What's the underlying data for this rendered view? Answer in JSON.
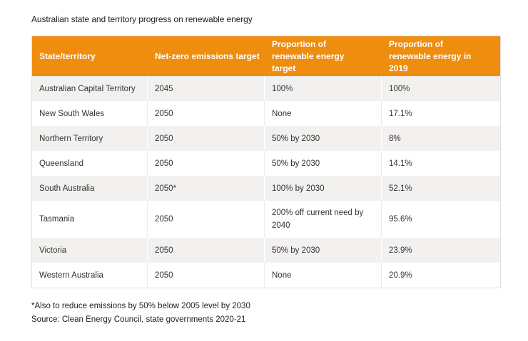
{
  "title": "Australian state and territory progress on renewable energy",
  "table": {
    "headers": [
      "State/territory",
      "Net-zero emissions target",
      "Proportion of renewable energy target",
      "Proportion of renewable energy in 2019"
    ],
    "rows": [
      [
        "Australian Capital Territory",
        "2045",
        "100%",
        "100%"
      ],
      [
        "New South Wales",
        "2050",
        "None",
        "17.1%"
      ],
      [
        "Northern Territory",
        "2050",
        "50% by 2030",
        "8%"
      ],
      [
        "Queensland",
        "2050",
        "50% by 2030",
        "14.1%"
      ],
      [
        "South Australia",
        "2050*",
        "100% by 2030",
        "52.1%"
      ],
      [
        "Tasmania",
        "2050",
        "200% off current need by 2040",
        "95.6%"
      ],
      [
        "Victoria",
        "2050",
        "50% by 2030",
        "23.9%"
      ],
      [
        "Western Australia",
        "2050",
        "None",
        "20.9%"
      ]
    ]
  },
  "footnote": "*Also to reduce emissions by 50% below 2005 level by 2030",
  "source": "Source: Clean Energy Council, state governments 2020-21",
  "colors": {
    "header_bg": "#ef8d0f",
    "row_alt_bg": "#f3f1ef"
  }
}
